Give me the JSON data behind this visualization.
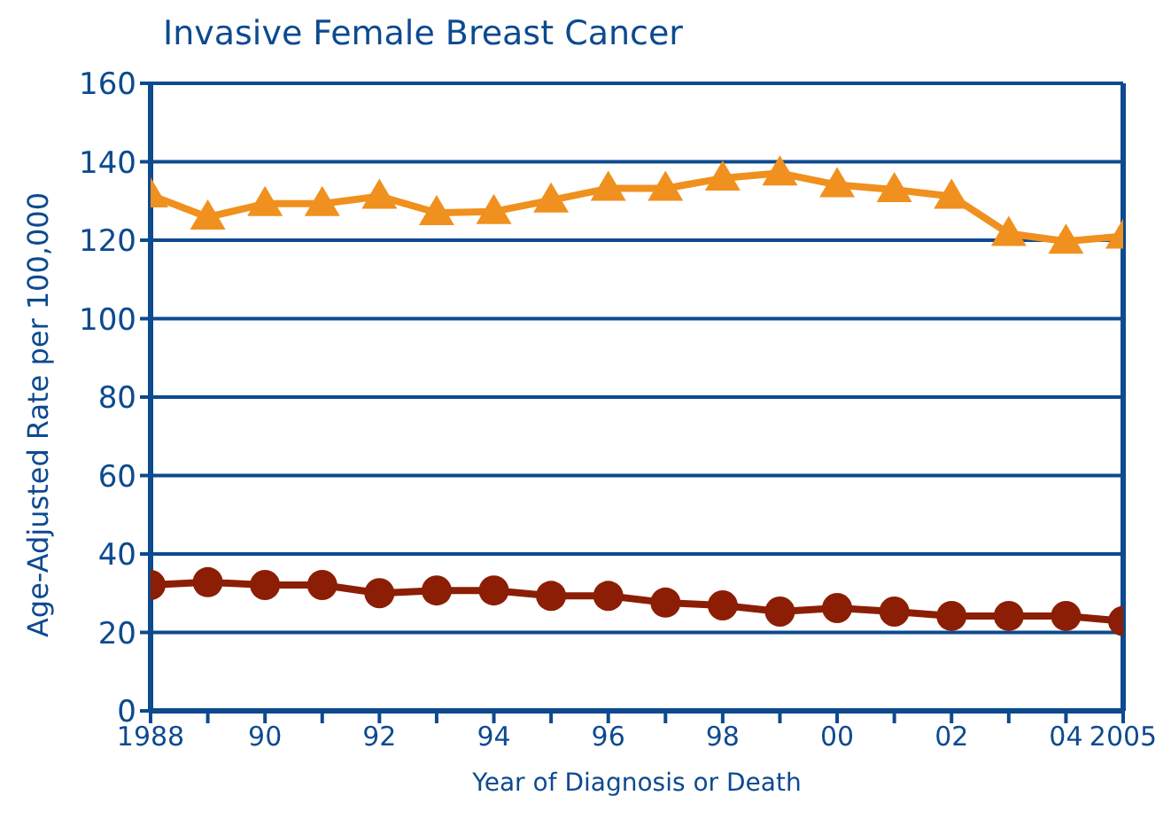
{
  "chart_data": {
    "type": "line",
    "title": "Invasive Female Breast Cancer",
    "xlabel": "Year of Diagnosis or Death",
    "ylabel": "Age-Adjusted Rate per 100,000",
    "x": [
      1988,
      1989,
      1990,
      1991,
      1992,
      1993,
      1994,
      1995,
      1996,
      1997,
      1998,
      1999,
      2000,
      2001,
      2002,
      2003,
      2004,
      2005
    ],
    "series": [
      {
        "color": "#f0901e",
        "marker": "triangle",
        "values": [
          131.5,
          125.9,
          129.3,
          129.3,
          131.2,
          127,
          127.3,
          130.2,
          133.2,
          133.2,
          135.8,
          137.1,
          134.1,
          132.9,
          131.2,
          121.7,
          119.7,
          121
        ]
      },
      {
        "color": "#8b1e05",
        "marker": "circle",
        "values": [
          32.1,
          32.8,
          32.1,
          32.1,
          30,
          30.7,
          30.7,
          29.3,
          29.3,
          27.6,
          26.9,
          25.3,
          26.2,
          25.3,
          24.2,
          24.2,
          24.2,
          22.9
        ]
      }
    ],
    "xlim": [
      1988,
      2005
    ],
    "xticks": [
      1988,
      {
        "value": 1989,
        "label": null
      },
      {
        "value": 1990,
        "label": "90"
      },
      {
        "value": 1991,
        "label": null
      },
      {
        "value": 1992,
        "label": "92"
      },
      {
        "value": 1993,
        "label": null
      },
      {
        "value": 1994,
        "label": "94"
      },
      {
        "value": 1995,
        "label": null
      },
      {
        "value": 1996,
        "label": "96"
      },
      {
        "value": 1997,
        "label": null
      },
      {
        "value": 1998,
        "label": "98"
      },
      {
        "value": 1999,
        "label": null
      },
      {
        "value": 2000,
        "label": "00"
      },
      {
        "value": 2001,
        "label": null
      },
      {
        "value": 2002,
        "label": "02"
      },
      {
        "value": 2003,
        "label": null
      },
      {
        "value": 2004,
        "label": "04"
      },
      2005
    ],
    "ylim": [
      0,
      160
    ],
    "yticks": [
      0,
      20,
      40,
      60,
      80,
      100,
      120,
      140,
      160
    ],
    "grid": "y",
    "legend": false,
    "line_style": "solid"
  }
}
